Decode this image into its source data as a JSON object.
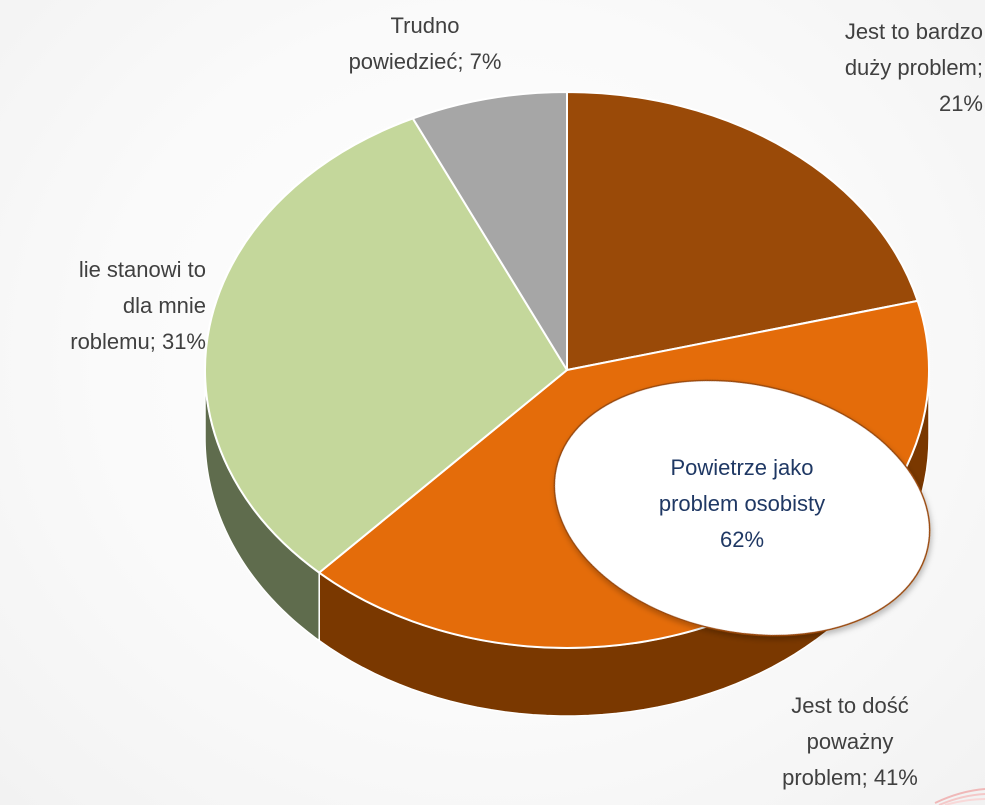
{
  "chart_data": {
    "type": "pie",
    "title": "",
    "slices": [
      {
        "label": "Jest to bardzo duży problem",
        "value": 21,
        "display": "Jest to bardzo\nduży problem;\n21%",
        "color": "#9a4a08",
        "side_color": "#6e3300"
      },
      {
        "label": "Jest to dość poważny problem",
        "value": 41,
        "display": "Jest to dość\npoważny\nproblem; 41%",
        "color": "#e46c0a",
        "side_color": "#7a3800"
      },
      {
        "label": "Nie stanowi to dla mnie problemu",
        "value": 31,
        "display": "lie stanowi to\ndla mnie\nroblemu; 31%",
        "color": "#c4d79b",
        "side_color": "#5f6c4d"
      },
      {
        "label": "Trudno powiedzieć",
        "value": 7,
        "display": "Trudno\npowiedzieć; 7%",
        "color": "#a6a6a6",
        "side_color": "#6e6e6e"
      }
    ],
    "callout": {
      "text": "Powietrze jako\nproblem osobisty\n62%"
    },
    "legend": "none",
    "label_position": "outside"
  }
}
